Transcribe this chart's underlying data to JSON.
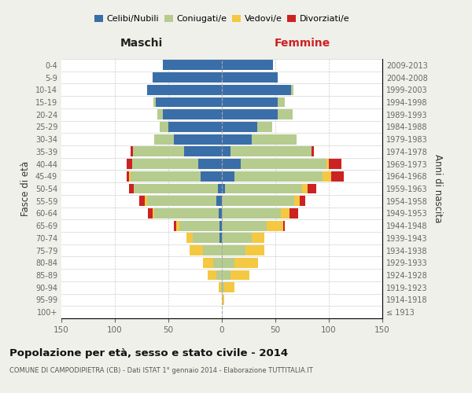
{
  "age_groups": [
    "100+",
    "95-99",
    "90-94",
    "85-89",
    "80-84",
    "75-79",
    "70-74",
    "65-69",
    "60-64",
    "55-59",
    "50-54",
    "45-49",
    "40-44",
    "35-39",
    "30-34",
    "25-29",
    "20-24",
    "15-19",
    "10-14",
    "5-9",
    "0-4"
  ],
  "birth_years": [
    "≤ 1913",
    "1914-1918",
    "1919-1923",
    "1924-1928",
    "1929-1933",
    "1934-1938",
    "1939-1943",
    "1944-1948",
    "1949-1953",
    "1954-1958",
    "1959-1963",
    "1964-1968",
    "1969-1973",
    "1974-1978",
    "1979-1983",
    "1984-1988",
    "1989-1993",
    "1994-1998",
    "1999-2003",
    "2004-2008",
    "2009-2013"
  ],
  "maschi": {
    "celibi": [
      0,
      0,
      0,
      0,
      0,
      0,
      2,
      2,
      3,
      5,
      4,
      20,
      22,
      35,
      45,
      50,
      55,
      62,
      70,
      65,
      55
    ],
    "coniugati": [
      0,
      0,
      1,
      5,
      8,
      18,
      25,
      38,
      60,
      65,
      78,
      65,
      62,
      48,
      18,
      8,
      5,
      2,
      0,
      0,
      0
    ],
    "vedovi": [
      0,
      0,
      2,
      8,
      10,
      12,
      6,
      3,
      2,
      2,
      0,
      2,
      0,
      0,
      0,
      0,
      0,
      0,
      0,
      0,
      0
    ],
    "divorziati": [
      0,
      0,
      0,
      0,
      0,
      0,
      0,
      2,
      4,
      5,
      5,
      2,
      5,
      2,
      0,
      0,
      0,
      0,
      0,
      0,
      0
    ]
  },
  "femmine": {
    "nubili": [
      0,
      0,
      0,
      0,
      0,
      0,
      0,
      0,
      0,
      0,
      3,
      12,
      18,
      8,
      28,
      33,
      52,
      52,
      65,
      52,
      48
    ],
    "coniugate": [
      0,
      0,
      2,
      8,
      12,
      22,
      28,
      42,
      55,
      68,
      72,
      82,
      80,
      76,
      42,
      14,
      14,
      7,
      2,
      0,
      0
    ],
    "vedove": [
      0,
      2,
      10,
      18,
      22,
      18,
      12,
      15,
      8,
      5,
      5,
      8,
      2,
      0,
      0,
      0,
      0,
      0,
      0,
      0,
      0
    ],
    "divorziate": [
      0,
      0,
      0,
      0,
      0,
      0,
      0,
      2,
      8,
      5,
      8,
      12,
      12,
      2,
      0,
      0,
      0,
      0,
      0,
      0,
      0
    ]
  },
  "colors": {
    "celibi": "#3a6ea8",
    "coniugati": "#b5cc8e",
    "vedovi": "#f5c842",
    "divorziati": "#cc2222"
  },
  "xlim": 150,
  "title": "Popolazione per età, sesso e stato civile - 2014",
  "subtitle": "COMUNE DI CAMPODIPIETRA (CB) - Dati ISTAT 1° gennaio 2014 - Elaborazione TUTTITALIA.IT",
  "xlabel_left": "Maschi",
  "xlabel_right": "Femmine",
  "ylabel_left": "Fasce di età",
  "ylabel_right": "Anni di nascita",
  "bg_color": "#f0f0eb",
  "plot_bg_color": "#ffffff",
  "legend_labels": [
    "Celibi/Nubili",
    "Coniugati/e",
    "Vedovi/e",
    "Divorziati/e"
  ]
}
